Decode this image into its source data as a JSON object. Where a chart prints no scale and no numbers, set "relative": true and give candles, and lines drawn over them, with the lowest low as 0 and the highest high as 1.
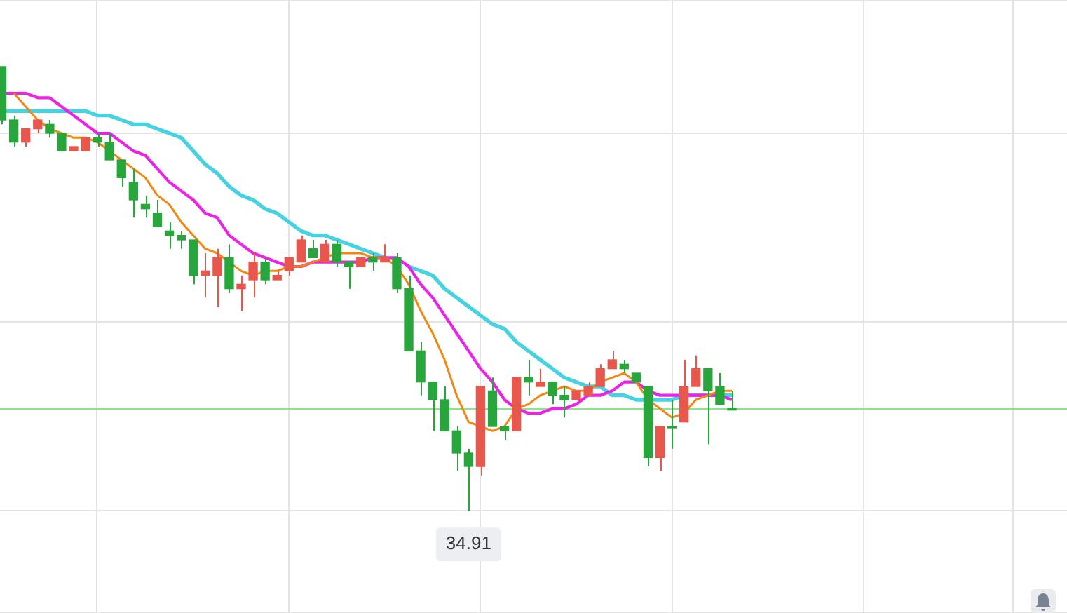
{
  "chart_data": {
    "type": "candlestick",
    "relative": true,
    "grid": true,
    "categories": [
      null,
      null,
      null,
      null,
      null,
      null,
      null,
      null,
      null,
      null,
      null,
      null,
      null,
      null,
      null,
      null,
      null,
      null,
      null,
      null,
      null,
      null,
      null,
      null,
      null,
      null,
      null,
      null,
      null,
      null,
      null,
      null,
      null,
      null,
      null,
      null,
      null,
      null,
      null,
      null,
      null,
      null,
      null,
      null,
      null,
      null,
      null,
      null,
      null,
      null,
      null,
      null,
      null,
      null,
      null,
      null,
      null,
      null,
      null,
      null,
      null,
      null
    ],
    "ohlc": [
      [
        1.0,
        1.0,
        0.87,
        0.88
      ],
      [
        0.88,
        0.89,
        0.82,
        0.83
      ],
      [
        0.83,
        0.86,
        0.82,
        0.86
      ],
      [
        0.86,
        0.88,
        0.85,
        0.88
      ],
      [
        0.87,
        0.88,
        0.84,
        0.85
      ],
      [
        0.85,
        0.85,
        0.81,
        0.81
      ],
      [
        0.81,
        0.82,
        0.81,
        0.82
      ],
      [
        0.81,
        0.84,
        0.81,
        0.84
      ],
      [
        0.84,
        0.85,
        0.82,
        0.83
      ],
      [
        0.83,
        0.85,
        0.79,
        0.79
      ],
      [
        0.79,
        0.79,
        0.73,
        0.75
      ],
      [
        0.74,
        0.77,
        0.66,
        0.7
      ],
      [
        0.69,
        0.71,
        0.66,
        0.68
      ],
      [
        0.67,
        0.7,
        0.64,
        0.64
      ],
      [
        0.63,
        0.65,
        0.59,
        0.62
      ],
      [
        0.62,
        0.63,
        0.59,
        0.61
      ],
      [
        0.61,
        0.61,
        0.51,
        0.53
      ],
      [
        0.53,
        0.58,
        0.48,
        0.54
      ],
      [
        0.53,
        0.59,
        0.46,
        0.57
      ],
      [
        0.57,
        0.6,
        0.49,
        0.5
      ],
      [
        0.5,
        0.53,
        0.45,
        0.51
      ],
      [
        0.52,
        0.58,
        0.48,
        0.56
      ],
      [
        0.56,
        0.57,
        0.51,
        0.52
      ],
      [
        0.52,
        0.54,
        0.52,
        0.53
      ],
      [
        0.54,
        0.57,
        0.53,
        0.57
      ],
      [
        0.56,
        0.62,
        0.56,
        0.61
      ],
      [
        0.59,
        0.61,
        0.57,
        0.57
      ],
      [
        0.56,
        0.61,
        0.56,
        0.6
      ],
      [
        0.6,
        0.61,
        0.55,
        0.56
      ],
      [
        0.56,
        0.56,
        0.5,
        0.55
      ],
      [
        0.55,
        0.57,
        0.55,
        0.57
      ],
      [
        0.57,
        0.58,
        0.54,
        0.56
      ],
      [
        0.56,
        0.6,
        0.56,
        0.57
      ],
      [
        0.57,
        0.58,
        0.49,
        0.5
      ],
      [
        0.5,
        0.53,
        0.36,
        0.36
      ],
      [
        0.36,
        0.38,
        0.26,
        0.29
      ],
      [
        0.29,
        0.29,
        0.18,
        0.25
      ],
      [
        0.25,
        0.28,
        0.18,
        0.18
      ],
      [
        0.18,
        0.19,
        0.09,
        0.13
      ],
      [
        0.13,
        0.14,
        0,
        0.1
      ],
      [
        0.1,
        0.28,
        0.08,
        0.28
      ],
      [
        0.27,
        0.3,
        0.19,
        0.19
      ],
      [
        0.19,
        0.19,
        0.16,
        0.18
      ],
      [
        0.18,
        0.3,
        0.18,
        0.3
      ],
      [
        0.3,
        0.34,
        0.26,
        0.29
      ],
      [
        0.28,
        0.32,
        0.28,
        0.29
      ],
      [
        0.29,
        0.29,
        0.24,
        0.26
      ],
      [
        0.26,
        0.28,
        0.21,
        0.25
      ],
      [
        0.25,
        0.27,
        0.25,
        0.27
      ],
      [
        0.26,
        0.29,
        0.26,
        0.28
      ],
      [
        0.28,
        0.33,
        0.28,
        0.32
      ],
      [
        0.32,
        0.36,
        0.32,
        0.34
      ],
      [
        0.33,
        0.34,
        0.31,
        0.32
      ],
      [
        0.31,
        0.31,
        0.29,
        0.29
      ],
      [
        0.28,
        0.28,
        0.1,
        0.12
      ],
      [
        0.12,
        0.19,
        0.09,
        0.19
      ],
      [
        0.19,
        0.25,
        0.14,
        0.19
      ],
      [
        0.2,
        0.34,
        0.2,
        0.28
      ],
      [
        0.28,
        0.35,
        0.28,
        0.32
      ],
      [
        0.32,
        0.32,
        0.15,
        0.27
      ],
      [
        0.28,
        0.31,
        0.24,
        0.24
      ],
      [
        0.23,
        0.27,
        0.23,
        0.23
      ]
    ],
    "colors": [
      "#27a63c",
      "#27a63c",
      "#e9574c",
      "#e9574c",
      "#27a63c",
      "#27a63c",
      "#e9574c",
      "#e9574c",
      "#27a63c",
      "#27a63c",
      "#27a63c",
      "#27a63c",
      "#27a63c",
      "#27a63c",
      "#27a63c",
      "#27a63c",
      "#27a63c",
      "#e9574c",
      "#e9574c",
      "#27a63c",
      "#e9574c",
      "#e9574c",
      "#27a63c",
      "#e9574c",
      "#e9574c",
      "#e9574c",
      "#27a63c",
      "#e9574c",
      "#27a63c",
      "#27a63c",
      "#e9574c",
      "#27a63c",
      "#e9574c",
      "#27a63c",
      "#27a63c",
      "#27a63c",
      "#27a63c",
      "#27a63c",
      "#27a63c",
      "#27a63c",
      "#e9574c",
      "#27a63c",
      "#27a63c",
      "#e9574c",
      "#27a63c",
      "#e9574c",
      "#27a63c",
      "#27a63c",
      "#e9574c",
      "#e9574c",
      "#e9574c",
      "#e9574c",
      "#27a63c",
      "#27a63c",
      "#27a63c",
      "#e9574c",
      "#27a63c",
      "#e9574c",
      "#e9574c",
      "#27a63c",
      "#27a63c",
      "#27a63c"
    ],
    "series": [
      {
        "type": "line",
        "color": "#f7860f",
        "values": [
          null,
          0.94,
          0.91,
          0.88,
          0.86,
          0.85,
          0.84,
          0.84,
          0.83,
          0.81,
          0.79,
          0.77,
          0.75,
          0.71,
          0.69,
          0.65,
          0.62,
          0.59,
          0.58,
          0.56,
          0.54,
          0.53,
          0.54,
          0.54,
          0.55,
          0.55,
          0.56,
          0.57,
          0.58,
          0.58,
          0.58,
          0.57,
          0.57,
          0.55,
          0.51,
          0.45,
          0.4,
          0.34,
          0.26,
          0.2,
          0.19,
          0.18,
          0.19,
          0.23,
          0.24,
          0.26,
          0.27,
          0.28,
          0.27,
          0.27,
          0.29,
          0.3,
          0.31,
          0.29,
          0.25,
          0.23,
          0.21,
          0.22,
          0.25,
          0.26,
          0.27,
          0.27
        ]
      },
      {
        "type": "line",
        "color": "#ee22e6",
        "values": [
          0.94,
          0.94,
          0.94,
          0.93,
          0.93,
          0.91,
          0.89,
          0.87,
          0.85,
          0.85,
          0.83,
          0.81,
          0.8,
          0.77,
          0.74,
          0.72,
          0.7,
          0.67,
          0.66,
          0.62,
          0.6,
          0.58,
          0.57,
          0.56,
          0.55,
          0.55,
          0.56,
          0.56,
          0.56,
          0.56,
          0.56,
          0.57,
          0.57,
          0.57,
          0.55,
          0.51,
          0.48,
          0.44,
          0.4,
          0.36,
          0.32,
          0.29,
          0.25,
          0.23,
          0.22,
          0.22,
          0.23,
          0.23,
          0.24,
          0.26,
          0.26,
          0.27,
          0.29,
          0.29,
          0.27,
          0.26,
          0.26,
          0.26,
          0.26,
          0.26,
          0.26,
          0.25
        ]
      },
      {
        "type": "line",
        "color": "#45d2e2",
        "values": [
          0.9,
          0.9,
          0.9,
          0.9,
          0.9,
          0.9,
          0.9,
          0.9,
          0.89,
          0.89,
          0.88,
          0.87,
          0.87,
          0.86,
          0.85,
          0.84,
          0.81,
          0.78,
          0.76,
          0.73,
          0.71,
          0.7,
          0.68,
          0.67,
          0.65,
          0.63,
          0.62,
          0.62,
          0.61,
          0.6,
          0.59,
          0.58,
          0.57,
          null,
          0.55,
          0.54,
          0.53,
          0.5,
          0.48,
          0.46,
          0.44,
          0.42,
          0.41,
          0.38,
          0.36,
          0.34,
          0.32,
          0.3,
          0.29,
          0.28,
          0.28,
          0.26,
          0.26,
          0.25,
          0.25,
          0.25,
          0.25,
          0.26,
          0.26,
          0.26,
          0.26,
          0.26
        ]
      }
    ],
    "ref_lines": [
      {
        "axis": "y",
        "value": 0.23,
        "color": "#8ee38e"
      }
    ],
    "annotations": [
      {
        "text": "34.91",
        "y": 0
      }
    ]
  }
}
